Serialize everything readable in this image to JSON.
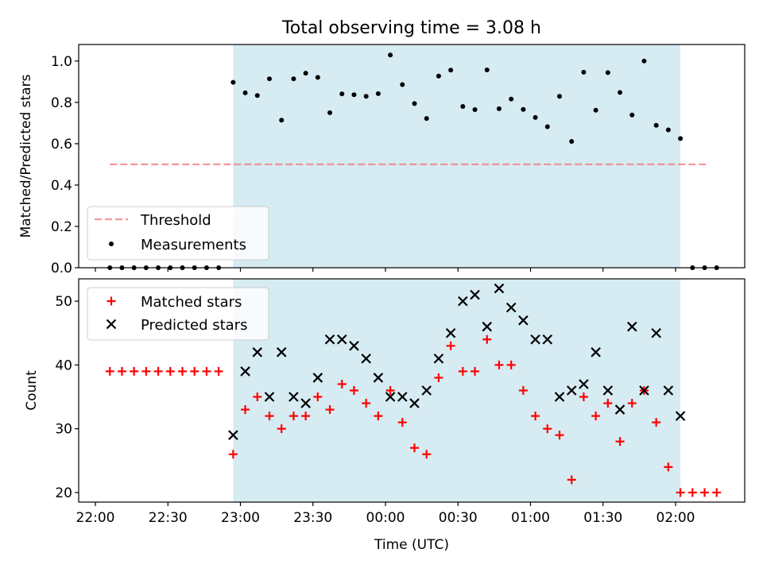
{
  "chart_data": {
    "type": "scatter",
    "title": "Total observing time = 3.08 h",
    "xlabel": "Time (UTC)",
    "x_ticks": [
      "22:00",
      "22:30",
      "23:00",
      "23:30",
      "00:00",
      "00:30",
      "01:00",
      "01:30",
      "02:00"
    ],
    "observing_window": {
      "start": "22:57",
      "end": "02:02"
    },
    "top_panel": {
      "ylabel": "Matched/Predicted stars",
      "ylim": [
        0,
        1.08
      ],
      "y_ticks": [
        "0.0",
        "0.2",
        "0.4",
        "0.6",
        "0.8",
        "1.0"
      ],
      "legend": {
        "position": "lower left",
        "entries": [
          "Threshold",
          "Measurements"
        ]
      },
      "threshold": {
        "name": "Threshold",
        "value": 0.5,
        "x_start": "22:06",
        "x_end": "02:13",
        "color": "#f08080"
      },
      "measurements": {
        "name": "Measurements",
        "color": "#000000",
        "x": [
          "22:06",
          "22:11",
          "22:16",
          "22:21",
          "22:26",
          "22:31",
          "22:36",
          "22:41",
          "22:46",
          "22:51",
          "22:57",
          "23:02",
          "23:07",
          "23:12",
          "23:17",
          "23:22",
          "23:27",
          "23:32",
          "23:37",
          "23:42",
          "23:47",
          "23:52",
          "23:57",
          "00:02",
          "00:07",
          "00:12",
          "00:17",
          "00:22",
          "00:27",
          "00:32",
          "00:37",
          "00:42",
          "00:47",
          "00:52",
          "00:57",
          "01:02",
          "01:07",
          "01:12",
          "01:17",
          "01:22",
          "01:27",
          "01:32",
          "01:37",
          "01:42",
          "01:47",
          "01:52",
          "01:57",
          "02:02",
          "02:07",
          "02:12",
          "02:17"
        ],
        "y": [
          0,
          0,
          0,
          0,
          0,
          0,
          0,
          0,
          0,
          0,
          0.897,
          0.846,
          0.833,
          0.914,
          0.714,
          0.914,
          0.941,
          0.921,
          0.75,
          0.841,
          0.837,
          0.829,
          0.842,
          1.029,
          0.886,
          0.794,
          0.722,
          0.927,
          0.956,
          0.78,
          0.765,
          0.957,
          0.769,
          0.816,
          0.766,
          0.727,
          0.682,
          0.829,
          0.611,
          0.946,
          0.762,
          0.944,
          0.848,
          0.739,
          1.0,
          0.689,
          0.667,
          0.625,
          0,
          0,
          0
        ]
      }
    },
    "bottom_panel": {
      "ylabel": "Count",
      "ylim": [
        18.5,
        53.5
      ],
      "y_ticks": [
        "20",
        "30",
        "40",
        "50"
      ],
      "legend": {
        "position": "upper left",
        "entries": [
          "Matched stars",
          "Predicted stars"
        ]
      },
      "series": [
        {
          "name": "Matched stars",
          "marker": "+",
          "color": "#ff0000",
          "x": [
            "22:06",
            "22:11",
            "22:16",
            "22:21",
            "22:26",
            "22:31",
            "22:36",
            "22:41",
            "22:46",
            "22:51",
            "22:57",
            "23:02",
            "23:07",
            "23:12",
            "23:17",
            "23:22",
            "23:27",
            "23:32",
            "23:37",
            "23:42",
            "23:47",
            "23:52",
            "23:57",
            "00:02",
            "00:07",
            "00:12",
            "00:17",
            "00:22",
            "00:27",
            "00:32",
            "00:37",
            "00:42",
            "00:47",
            "00:52",
            "00:57",
            "01:02",
            "01:07",
            "01:12",
            "01:17",
            "01:22",
            "01:27",
            "01:32",
            "01:37",
            "01:42",
            "01:47",
            "01:52",
            "01:57",
            "02:02",
            "02:07",
            "02:12",
            "02:17"
          ],
          "values": [
            39,
            39,
            39,
            39,
            39,
            39,
            39,
            39,
            39,
            39,
            26,
            33,
            35,
            32,
            30,
            32,
            32,
            35,
            33,
            37,
            36,
            34,
            32,
            36,
            31,
            27,
            26,
            38,
            43,
            39,
            39,
            44,
            40,
            40,
            36,
            32,
            30,
            29,
            22,
            35,
            32,
            34,
            28,
            34,
            36,
            31,
            24,
            20,
            20,
            20,
            20
          ]
        },
        {
          "name": "Predicted stars",
          "marker": "x",
          "color": "#000000",
          "x": [
            "22:57",
            "23:02",
            "23:07",
            "23:12",
            "23:17",
            "23:22",
            "23:27",
            "23:32",
            "23:37",
            "23:42",
            "23:47",
            "23:52",
            "23:57",
            "00:02",
            "00:07",
            "00:12",
            "00:17",
            "00:22",
            "00:27",
            "00:32",
            "00:37",
            "00:42",
            "00:47",
            "00:52",
            "00:57",
            "01:02",
            "01:07",
            "01:12",
            "01:17",
            "01:22",
            "01:27",
            "01:32",
            "01:37",
            "01:42",
            "01:47",
            "01:52",
            "01:57",
            "02:02"
          ],
          "values": [
            29,
            39,
            42,
            35,
            42,
            35,
            34,
            38,
            44,
            44,
            43,
            41,
            38,
            35,
            35,
            34,
            36,
            41,
            45,
            50,
            51,
            46,
            52,
            49,
            47,
            44,
            44,
            35,
            36,
            37,
            42,
            36,
            33,
            46,
            36,
            45,
            36,
            32
          ]
        }
      ]
    }
  }
}
